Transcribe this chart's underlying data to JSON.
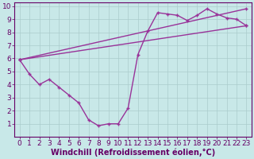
{
  "xlabel": "Windchill (Refroidissement éolien,°C)",
  "bg_color": "#c8e8e8",
  "line_color": "#993399",
  "xlim": [
    -0.5,
    23.5
  ],
  "ylim": [
    0,
    10.3
  ],
  "xticks": [
    0,
    1,
    2,
    3,
    4,
    5,
    6,
    7,
    8,
    9,
    10,
    11,
    12,
    13,
    14,
    15,
    16,
    17,
    18,
    19,
    20,
    21,
    22,
    23
  ],
  "yticks": [
    1,
    2,
    3,
    4,
    5,
    6,
    7,
    8,
    9,
    10
  ],
  "series1_x": [
    0,
    1,
    2,
    3,
    4,
    5,
    6,
    7,
    8,
    9,
    10,
    11,
    12,
    13,
    14,
    15,
    16,
    17,
    18,
    19,
    20,
    21,
    22,
    23
  ],
  "series1_y": [
    5.9,
    4.8,
    4.0,
    4.4,
    3.8,
    3.2,
    2.6,
    1.3,
    0.85,
    1.0,
    1.0,
    2.2,
    6.3,
    8.1,
    9.5,
    9.4,
    9.3,
    8.9,
    9.3,
    9.8,
    9.4,
    9.1,
    9.0,
    8.5
  ],
  "series2_x": [
    0,
    23
  ],
  "series2_y": [
    5.9,
    9.8
  ],
  "series3_x": [
    0,
    23
  ],
  "series3_y": [
    5.9,
    8.5
  ],
  "grid_color": "#aacccc",
  "font_color": "#660066",
  "font_size": 6.5,
  "xlabel_fontsize": 7.0
}
